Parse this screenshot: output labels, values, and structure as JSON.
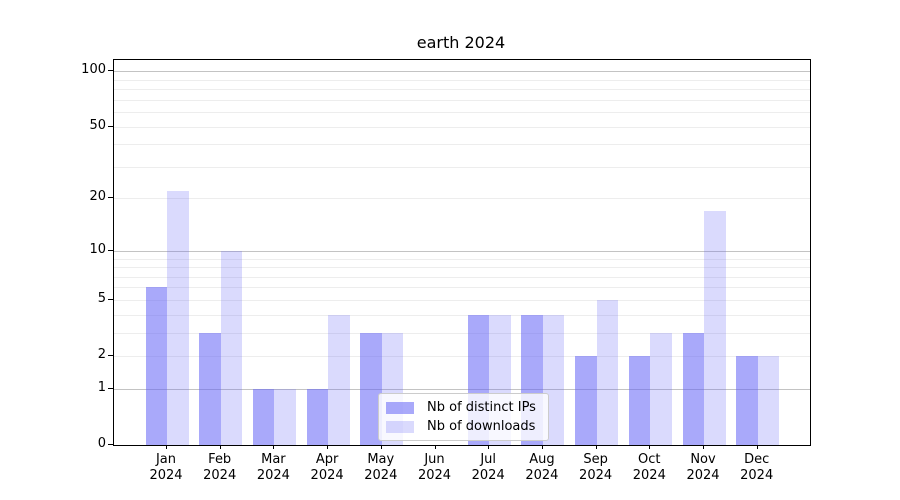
{
  "chart_data": {
    "type": "bar",
    "title": "earth 2024",
    "categories": [
      "Jan",
      "Feb",
      "Mar",
      "Apr",
      "May",
      "Jun",
      "Jul",
      "Aug",
      "Sep",
      "Oct",
      "Nov",
      "Dec"
    ],
    "xtick_line2": "2024",
    "series": [
      {
        "name": "Nb of distinct IPs",
        "color": "rgba(99,99,245,0.55)",
        "values": [
          6,
          3,
          1,
          1,
          3,
          0,
          4,
          4,
          2,
          2,
          3,
          2
        ]
      },
      {
        "name": "Nb of downloads",
        "color": "rgba(99,99,245,0.24)",
        "values": [
          22,
          10,
          1,
          4,
          3,
          0,
          4,
          4,
          5,
          3,
          17,
          2
        ]
      }
    ],
    "yscale": "log1p",
    "ylim": [
      0,
      115
    ],
    "yticks": [
      0,
      1,
      2,
      5,
      10,
      20,
      50,
      100
    ],
    "major_gridlines": [
      1,
      10,
      100
    ],
    "minor_gridlines": [
      2,
      3,
      4,
      5,
      6,
      7,
      8,
      9,
      20,
      30,
      40,
      50,
      60,
      70,
      80,
      90
    ],
    "grid": true,
    "legend_position": "lower center",
    "colors": {
      "bar_base": "#6363f5",
      "major_grid": "#c3c3c3",
      "minor_grid": "#ededed",
      "spine": "#000000"
    }
  }
}
